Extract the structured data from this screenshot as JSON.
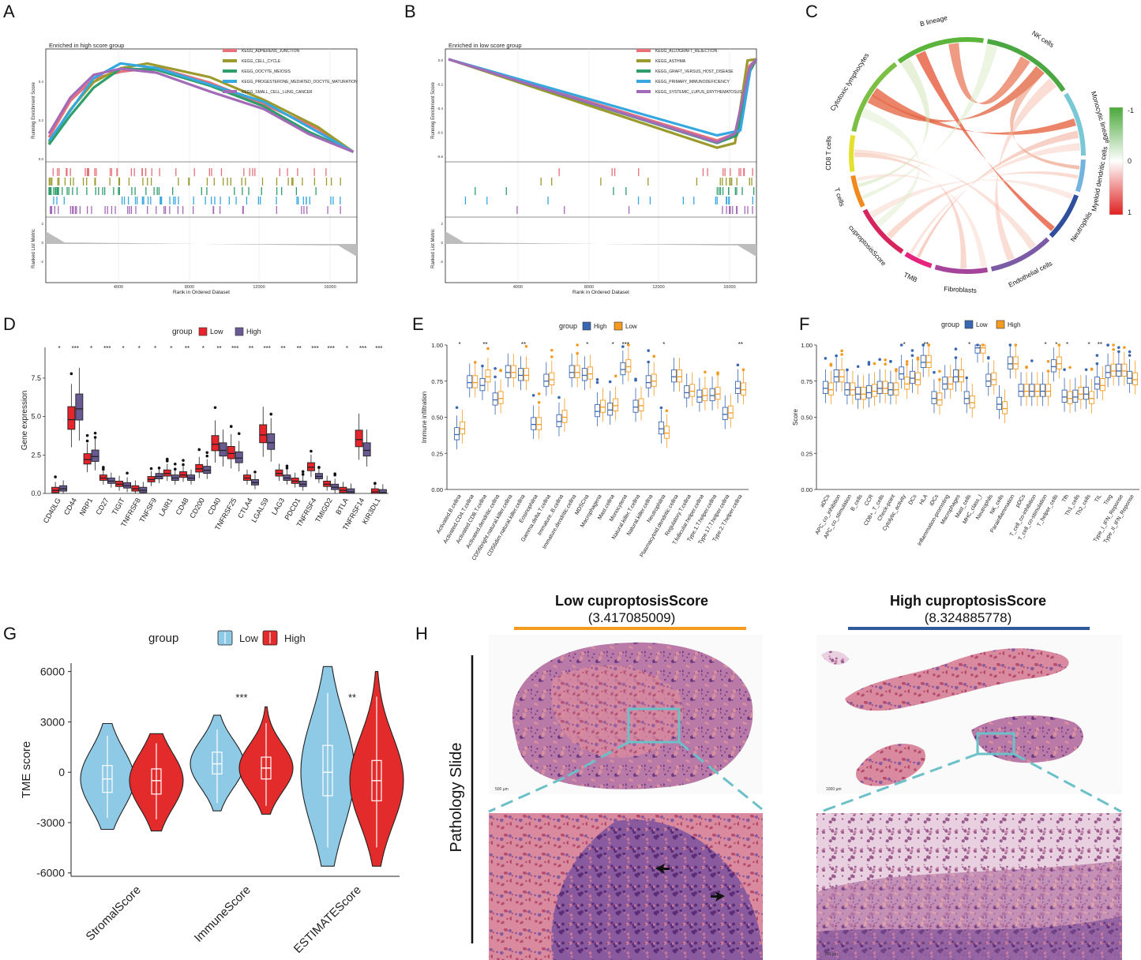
{
  "panels": {
    "A": {
      "letter": "A"
    },
    "B": {
      "letter": "B"
    },
    "C": {
      "letter": "C"
    },
    "D": {
      "letter": "D"
    },
    "E": {
      "letter": "E"
    },
    "F": {
      "letter": "F"
    },
    "G": {
      "letter": "G"
    },
    "H": {
      "letter": "H"
    }
  },
  "colors": {
    "low_red": "#e6242c",
    "high_purple": "#6a5a94",
    "blue": "#3a67b1",
    "orange": "#f39a1f",
    "light_blue": "#8ec9e6",
    "red": "#e32b2b"
  },
  "chart_data": [
    {
      "id": "A",
      "type": "line",
      "title": "Enriched in high score group",
      "ylabel": "Running Enrichment Score",
      "xlabel": "Rank in Ordered Dataset",
      "ylabel_bottom": "Ranked List Metric",
      "xticks": [
        "4000",
        "8000",
        "12000",
        "16000"
      ],
      "yticks_top": [
        "0.0",
        "0.2",
        "0.4"
      ],
      "yticks_bottom": [
        "2",
        "0",
        "-2"
      ],
      "series": [
        {
          "name": "KEGG_ADHERENS_JUNCTION",
          "color": "#e8707a",
          "x": [
            0,
            1200,
            2500,
            4000,
            6000,
            9000,
            12000,
            15000,
            17000
          ],
          "y": [
            0.08,
            0.28,
            0.4,
            0.45,
            0.47,
            0.38,
            0.26,
            0.14,
            0.0
          ]
        },
        {
          "name": "KEGG_CELL_CYCLE",
          "color": "#9c9a2c",
          "x": [
            0,
            1200,
            2500,
            4000,
            5500,
            9000,
            12000,
            15000,
            17000
          ],
          "y": [
            0.05,
            0.22,
            0.38,
            0.46,
            0.49,
            0.4,
            0.28,
            0.15,
            0.0
          ]
        },
        {
          "name": "KEGG_OOCYTE_MEIOSIS",
          "color": "#2e9e6a",
          "x": [
            0,
            1200,
            2500,
            4000,
            6000,
            9000,
            12000,
            14500,
            17000
          ],
          "y": [
            0.04,
            0.2,
            0.36,
            0.45,
            0.46,
            0.36,
            0.25,
            0.12,
            0.0
          ]
        },
        {
          "name": "KEGG_PROGESTERONE_MEDIATED_OOCYTE_MATURATION",
          "color": "#35a8e0",
          "x": [
            0,
            1200,
            2500,
            4000,
            6000,
            9000,
            12000,
            14800,
            17000
          ],
          "y": [
            0.06,
            0.24,
            0.39,
            0.47,
            0.47,
            0.37,
            0.26,
            0.13,
            0.0
          ]
        },
        {
          "name": "KEGG_SMALL_CELL_LUNG_CANCER",
          "color": "#a36ab8",
          "x": [
            0,
            1200,
            2500,
            4000,
            6000,
            9000,
            12000,
            14500,
            17000
          ],
          "y": [
            0.1,
            0.3,
            0.42,
            0.45,
            0.44,
            0.34,
            0.22,
            0.1,
            0.0
          ]
        }
      ]
    },
    {
      "id": "B",
      "type": "line",
      "title": "Enriched in low score group",
      "ylabel": "Running Enrichment Score",
      "xlabel": "Rank in Ordered Dataset",
      "ylabel_bottom": "Ranked List Metric",
      "xticks": [
        "4000",
        "8000",
        "12000",
        "16000"
      ],
      "yticks_top": [
        "0.0",
        "-0.2",
        "-0.4",
        "-0.6",
        "-0.8"
      ],
      "yticks_bottom": [
        "2",
        "0",
        "-2"
      ],
      "series": [
        {
          "name": "KEGG_ALLOGRAFT_REJECTION",
          "color": "#e8707a",
          "x": [
            0,
            15000,
            16200,
            16800,
            17200
          ],
          "y": [
            0.0,
            -0.68,
            -0.62,
            -0.05,
            0.0
          ]
        },
        {
          "name": "KEGG_ASTHMA",
          "color": "#9c9a2c",
          "x": [
            0,
            15000,
            16000,
            16700,
            17200
          ],
          "y": [
            0.0,
            -0.75,
            -0.7,
            0.0,
            0.0
          ]
        },
        {
          "name": "KEGG_GRAFT_VERSUS_HOST_DISEASE",
          "color": "#2e9e6a",
          "x": [
            0,
            15000,
            16100,
            16800,
            17200
          ],
          "y": [
            0.0,
            -0.72,
            -0.66,
            -0.1,
            0.0
          ]
        },
        {
          "name": "KEGG_PRIMARY_IMMUNODEFICIENCY",
          "color": "#35a8e0",
          "x": [
            0,
            15000,
            16300,
            16900,
            17200
          ],
          "y": [
            0.0,
            -0.65,
            -0.6,
            -0.05,
            0.0
          ]
        },
        {
          "name": "KEGG_SYSTEMIC_LUPUS_ERYTHEMATOSUS",
          "color": "#a36ab8",
          "x": [
            0,
            15000,
            16000,
            16800,
            17200
          ],
          "y": [
            0.0,
            -0.7,
            -0.64,
            -0.08,
            0.0
          ]
        }
      ]
    },
    {
      "id": "C",
      "type": "chord",
      "sectors": [
        "Cytotoxic lymphocytes",
        "B lineage",
        "NK cells",
        "Monocytic lineage",
        "Myeloid dendritic cells",
        "Neutrophils",
        "Endothelial cells",
        "Fibroblasts",
        "TMB",
        "cuproptosisScore",
        "T cells",
        "CD8 T cells"
      ],
      "sector_colors": [
        "#7bc044",
        "#5ab53a",
        "#4aa741",
        "#7ac8d6",
        "#73b3e0",
        "#2f4f9e",
        "#7b5aa6",
        "#a4449a",
        "#e4247d",
        "#d6245c",
        "#f08a1c",
        "#e4e12e"
      ],
      "legend": {
        "max": "1",
        "mid": "0",
        "min": "-1"
      }
    },
    {
      "id": "D",
      "type": "box",
      "legend_title": "group",
      "legend": [
        "Low",
        "High"
      ],
      "ylabel": "Gene expression",
      "yticks": [
        "0.0",
        "2.5",
        "5.0",
        "7.5"
      ],
      "ylim": [
        0,
        9.5
      ],
      "categories": [
        "CD40LG",
        "CD44",
        "NRP1",
        "CD27",
        "TIGIT",
        "TNFRSF8",
        "TNFSF9",
        "LAIR1",
        "CD48",
        "CD200",
        "CD40",
        "TNFRSF25",
        "CTLA4",
        "LGALS9",
        "LAG3",
        "PDCD1",
        "TNFRSF4",
        "TMIGD2",
        "BTLA",
        "TNFRSF14",
        "KIR3DL1"
      ],
      "significance": [
        "*",
        "***",
        "*",
        "***",
        "*",
        "*",
        "*",
        "*",
        "**",
        "*",
        "**",
        "***",
        "**",
        "***",
        "**",
        "**",
        "***",
        "***",
        "*",
        "***",
        "***"
      ],
      "low_median": [
        0.2,
        4.8,
        2.2,
        1.0,
        0.6,
        0.3,
        0.9,
        1.3,
        1.2,
        1.6,
        3.2,
        2.6,
        1.0,
        3.8,
        1.3,
        0.8,
        1.7,
        0.6,
        0.2,
        3.5,
        0.1
      ],
      "high_median": [
        0.3,
        5.5,
        2.4,
        0.8,
        0.5,
        0.2,
        1.1,
        1.0,
        1.0,
        1.5,
        2.8,
        2.3,
        0.7,
        3.3,
        1.0,
        0.6,
        1.1,
        0.4,
        0.1,
        2.8,
        0.05
      ]
    },
    {
      "id": "E",
      "type": "box",
      "legend_title": "group",
      "legend": [
        "High",
        "Low"
      ],
      "ylabel": "Immune infiltration",
      "yticks": [
        "0.00",
        "0.25",
        "0.50",
        "0.75",
        "1.00"
      ],
      "ylim": [
        0,
        1
      ],
      "categories": [
        "Activated.B.cellna",
        "Activated.CD4.T.cellna",
        "Activated.CD8.T.cellna",
        "Activated.dendritic.cellna",
        "CD56bright.natural.killer.cellna",
        "CD56dim.natural.killer.cellna",
        "Eosinophilna",
        "Gamma.delta.T.cellna",
        "Immature..B.cellna",
        "Immature.dendritic.cellna",
        "MDSCna",
        "Macrophagena",
        "Mast.cellna",
        "Monocytena",
        "Natural.killer.T.cellna",
        "Natural.killer.cellna",
        "Neutrophilna",
        "Plasmacytoid.dendritic.cellna",
        "Regulatory.T.cellna",
        "T.follicular.helper.cellna",
        "Type.1.T.helper.cellna",
        "Type.17.T.helper.cellna",
        "Type.2.T.helper.cellna"
      ],
      "significance": [
        "*",
        "",
        "**",
        "",
        "",
        "**",
        "",
        "",
        "",
        "",
        "*",
        "",
        "*",
        "***",
        "",
        "",
        "*",
        "",
        "",
        "",
        "",
        "",
        "**"
      ],
      "high_median": [
        0.38,
        0.74,
        0.72,
        0.62,
        0.81,
        0.79,
        0.45,
        0.75,
        0.47,
        0.81,
        0.79,
        0.54,
        0.55,
        0.83,
        0.57,
        0.74,
        0.42,
        0.78,
        0.67,
        0.64,
        0.65,
        0.52,
        0.7
      ],
      "low_median": [
        0.42,
        0.74,
        0.78,
        0.63,
        0.81,
        0.79,
        0.45,
        0.76,
        0.5,
        0.81,
        0.8,
        0.57,
        0.58,
        0.85,
        0.58,
        0.75,
        0.39,
        0.78,
        0.68,
        0.65,
        0.66,
        0.53,
        0.69
      ]
    },
    {
      "id": "F",
      "type": "box",
      "legend_title": "group",
      "legend": [
        "Low",
        "High"
      ],
      "ylabel": "Score",
      "yticks": [
        "0.00",
        "0.25",
        "0.50",
        "0.75",
        "1.00"
      ],
      "ylim": [
        0,
        1
      ],
      "categories": [
        "aDCs",
        "APC_co_inhibition",
        "APC_co_stimulation",
        "B_cells",
        "CCR",
        "CD8+_T_cells",
        "Check-point",
        "Cytolytic_activity",
        "DCs",
        "HLA",
        "iDCs",
        "Inflammation-promoting",
        "Macrophages",
        "Mast_cells",
        "MHC_class_I",
        "Neutrophils",
        "NK_cells",
        "Parainflammation",
        "pDCs",
        "T_cell_co-inhibition",
        "T_cell_co-stimulation",
        "T_helper_cells",
        "Tfh",
        "Th1_cells",
        "Th2_cells",
        "TIL",
        "Treg",
        "Type_I_IFN_Reponse",
        "Type_II_IFN_Reponse"
      ],
      "significance": [
        "",
        "",
        "",
        "",
        "",
        "",
        "",
        "*",
        "",
        "**",
        "",
        "",
        "",
        "*",
        "",
        "",
        "",
        "",
        "",
        "",
        "*",
        "*",
        "*",
        "",
        "*",
        "**",
        "",
        "",
        ""
      ],
      "low_median": [
        0.7,
        0.78,
        0.69,
        0.66,
        0.67,
        0.7,
        0.69,
        0.8,
        0.77,
        0.88,
        0.63,
        0.73,
        0.78,
        0.63,
        0.98,
        0.75,
        0.59,
        0.87,
        0.68,
        0.68,
        0.68,
        0.85,
        0.64,
        0.64,
        0.66,
        0.73,
        0.81,
        0.82,
        0.77
      ],
      "high_median": [
        0.69,
        0.78,
        0.69,
        0.66,
        0.68,
        0.7,
        0.69,
        0.73,
        0.76,
        0.88,
        0.62,
        0.73,
        0.78,
        0.6,
        0.98,
        0.76,
        0.56,
        0.87,
        0.68,
        0.68,
        0.68,
        0.87,
        0.63,
        0.66,
        0.63,
        0.72,
        0.82,
        0.82,
        0.76
      ]
    },
    {
      "id": "G",
      "type": "violin",
      "legend_title": "group",
      "legend": [
        "Low",
        "High"
      ],
      "ylabel": "TME score",
      "yticks": [
        "6000",
        "3000",
        "0",
        "-3000",
        "-6000"
      ],
      "ylim": [
        -6200,
        6500
      ],
      "categories": [
        "StromalScore",
        "ImmuneScore",
        "ESTIMATEScore"
      ],
      "significance": [
        "",
        "***",
        "**"
      ],
      "series": [
        {
          "name": "Low",
          "median": [
            -400,
            500,
            0
          ],
          "q1": [
            -1200,
            -100,
            -1400
          ],
          "q3": [
            400,
            1200,
            1600
          ],
          "min": [
            -3400,
            -2300,
            -5600
          ],
          "max": [
            2900,
            3400,
            6300
          ]
        },
        {
          "name": "High",
          "median": [
            -500,
            250,
            -500
          ],
          "q1": [
            -1300,
            -400,
            -1700
          ],
          "q3": [
            200,
            900,
            700
          ],
          "min": [
            -3500,
            -2500,
            -5600
          ],
          "max": [
            2300,
            3900,
            6000
          ]
        }
      ]
    }
  ],
  "pathology": {
    "low_title": "Low cuproptosisScore",
    "low_value": "(3.417085009)",
    "high_title": "High cuproptosisScore",
    "high_value": "(8.324885778)",
    "side_label": "Pathology Slide",
    "scale_low": "500 µm",
    "scale_high": "1000 µm",
    "scale_zoom": "100 µm"
  }
}
